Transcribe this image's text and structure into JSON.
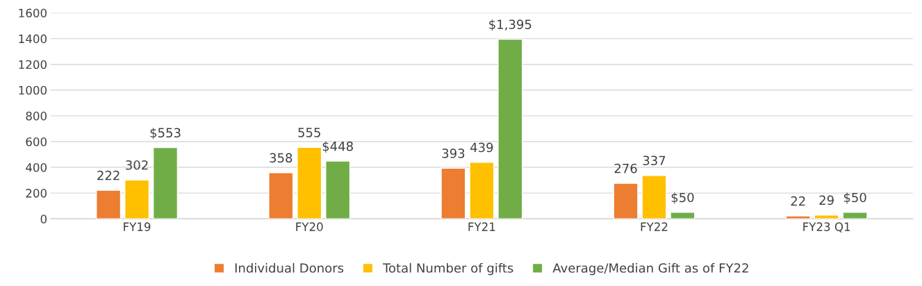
{
  "chart_data": {
    "type": "bar",
    "categories": [
      "FY19",
      "FY20",
      "FY21",
      "FY22",
      "FY23 Q1"
    ],
    "series": [
      {
        "name": "Individual Donors",
        "color": "#ed7d31",
        "values": [
          222,
          358,
          393,
          276,
          22
        ],
        "value_labels": [
          "222",
          "358",
          "393",
          "276",
          "22"
        ]
      },
      {
        "name": "Total Number of gifts",
        "color": "#ffc000",
        "values": [
          302,
          555,
          439,
          337,
          29
        ],
        "value_labels": [
          "302",
          "555",
          "439",
          "337",
          "29"
        ]
      },
      {
        "name": "Average/Median Gift as of FY22",
        "color": "#70ad47",
        "values": [
          553,
          448,
          1395,
          50,
          50
        ],
        "value_labels": [
          "$553",
          "$448",
          "$1,395",
          "$50",
          "$50"
        ]
      }
    ],
    "ylim": [
      0,
      1600
    ],
    "yticks": [
      0,
      200,
      400,
      600,
      800,
      1000,
      1200,
      1400,
      1600
    ],
    "grid": "y",
    "legend": "bottom"
  }
}
